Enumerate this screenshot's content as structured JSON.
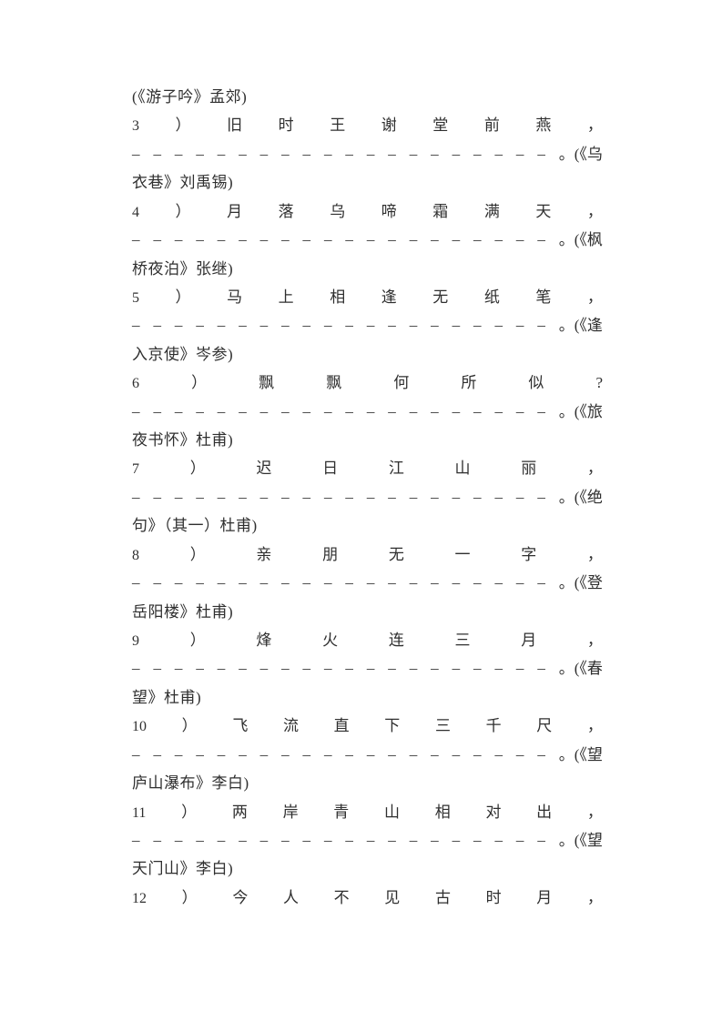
{
  "doc": {
    "background": "#ffffff",
    "text_color": "#2f2f2f",
    "header_continuation": "(《游子吟》孟郊)",
    "blank": {
      "dash_char": "_",
      "dash_count": 20
    },
    "entries": [
      {
        "number": "3",
        "paren": "）",
        "verse_chars": [
          "旧",
          "时",
          "王",
          "谢",
          "堂",
          "前",
          "燕"
        ],
        "end_punct": "，",
        "blank_tail": "。(《乌",
        "source_continuation": "衣巷》刘禹锡)"
      },
      {
        "number": "4",
        "paren": "）",
        "verse_chars": [
          "月",
          "落",
          "乌",
          "啼",
          "霜",
          "满",
          "天"
        ],
        "end_punct": "，",
        "blank_tail": "。(《枫",
        "source_continuation": "桥夜泊》张继)"
      },
      {
        "number": "5",
        "paren": "）",
        "verse_chars": [
          "马",
          "上",
          "相",
          "逢",
          "无",
          "纸",
          "笔"
        ],
        "end_punct": "，",
        "blank_tail": "。(《逢",
        "source_continuation": "入京使》岑参)"
      },
      {
        "number": "6",
        "paren": "）",
        "verse_chars": [
          "飘",
          "飘",
          "何",
          "所",
          "似"
        ],
        "end_punct": "?",
        "blank_tail": "。(《旅",
        "source_continuation": "夜书怀》杜甫)"
      },
      {
        "number": "7",
        "paren": "）",
        "verse_chars": [
          "迟",
          "日",
          "江",
          "山",
          "丽"
        ],
        "end_punct": "，",
        "blank_tail": "。(《绝",
        "source_continuation": "句》（其一）杜甫)"
      },
      {
        "number": "8",
        "paren": "）",
        "verse_chars": [
          "亲",
          "朋",
          "无",
          "一",
          "字"
        ],
        "end_punct": "，",
        "blank_tail": "。(《登",
        "source_continuation": "岳阳楼》杜甫)"
      },
      {
        "number": "9",
        "paren": "）",
        "verse_chars": [
          "烽",
          "火",
          "连",
          "三",
          "月"
        ],
        "end_punct": "，",
        "blank_tail": "。(《春",
        "source_continuation": "望》杜甫)"
      },
      {
        "number": "10",
        "paren": "）",
        "verse_chars": [
          "飞",
          "流",
          "直",
          "下",
          "三",
          "千",
          "尺"
        ],
        "end_punct": "，",
        "blank_tail": "。(《望",
        "source_continuation": "庐山瀑布》李白)"
      },
      {
        "number": "11",
        "paren": "）",
        "verse_chars": [
          "两",
          "岸",
          "青",
          "山",
          "相",
          "对",
          "出"
        ],
        "end_punct": "，",
        "blank_tail": "。(《望",
        "source_continuation": "天门山》李白)"
      },
      {
        "number": "12",
        "paren": "）",
        "verse_chars": [
          "今",
          "人",
          "不",
          "见",
          "古",
          "时",
          "月"
        ],
        "end_punct": "，",
        "blank_tail": null,
        "source_continuation": null
      }
    ]
  }
}
